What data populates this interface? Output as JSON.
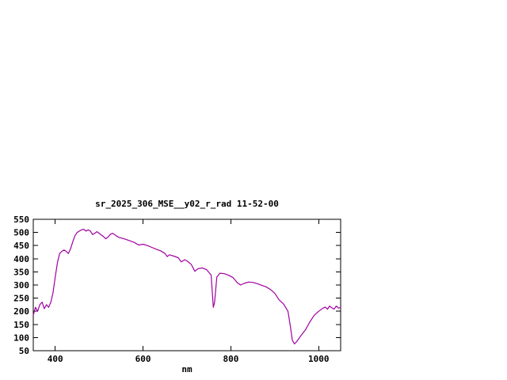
{
  "page": {
    "background": "#ffffff",
    "axis_color": "#000000",
    "text_color": "#000000"
  },
  "chart_data": {
    "type": "line",
    "title": "sr_2025_306_MSE__y02_r_rad 11-52-00",
    "xlabel": "nm",
    "ylabel": "",
    "xlim": [
      350,
      1050
    ],
    "ylim": [
      50,
      550
    ],
    "x_ticks": [
      400,
      600,
      800,
      1000
    ],
    "y_ticks": [
      50,
      100,
      150,
      200,
      250,
      300,
      350,
      400,
      450,
      500,
      550
    ],
    "grid": false,
    "legend_position": "none",
    "line_color": "#a000a0",
    "series": [
      {
        "name": "sr_2025_306_MSE__y02_r_rad",
        "x": [
          350,
          355,
          360,
          365,
          370,
          375,
          380,
          385,
          390,
          395,
          400,
          405,
          410,
          415,
          420,
          425,
          430,
          435,
          440,
          445,
          450,
          455,
          460,
          465,
          470,
          475,
          480,
          485,
          490,
          495,
          500,
          505,
          510,
          515,
          520,
          525,
          530,
          535,
          540,
          545,
          550,
          560,
          570,
          580,
          590,
          600,
          610,
          620,
          630,
          640,
          650,
          655,
          660,
          670,
          680,
          687,
          695,
          700,
          710,
          718,
          725,
          735,
          745,
          755,
          760,
          763,
          768,
          775,
          785,
          795,
          805,
          815,
          822,
          830,
          840,
          850,
          860,
          870,
          880,
          890,
          900,
          910,
          920,
          930,
          935,
          940,
          945,
          950,
          960,
          970,
          980,
          990,
          1000,
          1010,
          1015,
          1020,
          1025,
          1030,
          1035,
          1040,
          1045,
          1050
        ],
        "y": [
          185,
          215,
          200,
          225,
          235,
          210,
          225,
          215,
          235,
          270,
          330,
          385,
          420,
          428,
          433,
          428,
          420,
          438,
          465,
          488,
          500,
          505,
          510,
          512,
          505,
          510,
          505,
          492,
          497,
          503,
          497,
          490,
          484,
          476,
          482,
          492,
          497,
          492,
          486,
          481,
          479,
          474,
          468,
          462,
          452,
          455,
          450,
          443,
          436,
          430,
          420,
          408,
          415,
          410,
          404,
          388,
          396,
          392,
          378,
          352,
          362,
          365,
          358,
          338,
          215,
          235,
          330,
          345,
          343,
          337,
          328,
          308,
          300,
          306,
          311,
          310,
          305,
          299,
          293,
          283,
          268,
          243,
          228,
          200,
          148,
          90,
          76,
          85,
          108,
          130,
          160,
          185,
          200,
          212,
          216,
          208,
          220,
          213,
          208,
          220,
          212,
          214
        ]
      }
    ]
  }
}
